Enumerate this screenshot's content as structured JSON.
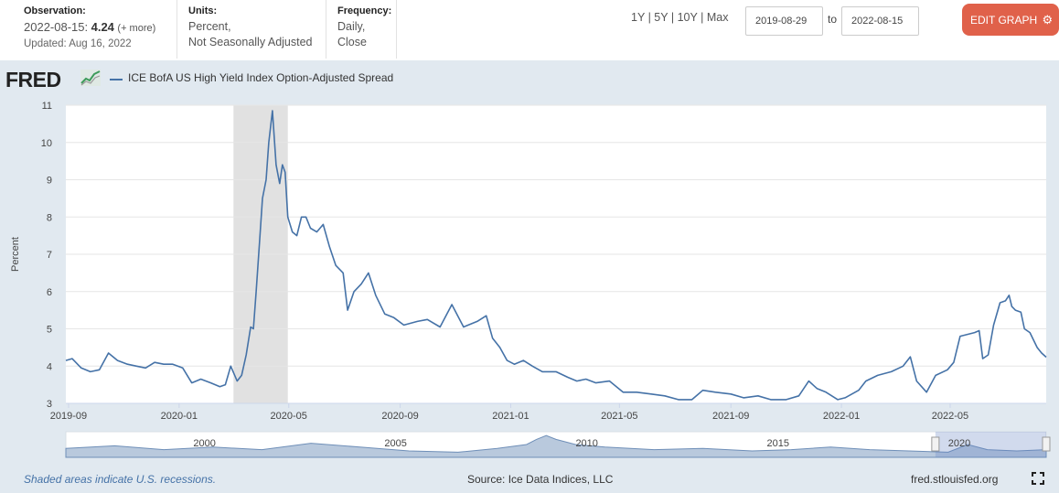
{
  "header": {
    "observation_label": "Observation:",
    "observation_date": "2022-08-15:",
    "observation_value": "4.24",
    "observation_more": "(+ more)",
    "updated": "Updated: Aug 16, 2022",
    "units_label": "Units:",
    "units_line1": "Percent,",
    "units_line2": "Not Seasonally Adjusted",
    "frequency_label": "Frequency:",
    "frequency_line1": "Daily,",
    "frequency_line2": "Close",
    "range_1y": "1Y",
    "range_5y": "5Y",
    "range_10y": "10Y",
    "range_max": "Max",
    "range_sep": "|",
    "start_date": "2019-08-29",
    "to_label": "to",
    "end_date": "2022-08-15",
    "edit_button": "EDIT GRAPH",
    "edit_icon": "gear-icon"
  },
  "brand": {
    "logo_text": "FRED",
    "series_title": "ICE BofA US High Yield Index Option-Adjusted Spread"
  },
  "footer": {
    "recession_note": "Shaded areas indicate U.S. recessions.",
    "source": "Source: Ice Data Indices, LLC",
    "site": "fred.stlouisfed.org"
  },
  "colors": {
    "series": "#4572a7",
    "panel_bg": "#e1e9f0",
    "recession": "#e1e1e1",
    "edit_button": "#e0614a"
  },
  "chart_data": {
    "type": "line",
    "title": "ICE BofA US High Yield Index Option-Adjusted Spread",
    "ylabel": "Percent",
    "xlabel": "",
    "ylim": [
      3,
      11
    ],
    "xlim": [
      "2019-08-29",
      "2022-08-15"
    ],
    "y_ticks": [
      3,
      4,
      5,
      6,
      7,
      8,
      9,
      10,
      11
    ],
    "x_ticks": [
      "2019-09",
      "2020-01",
      "2020-05",
      "2020-09",
      "2021-01",
      "2021-05",
      "2021-09",
      "2022-01",
      "2022-05"
    ],
    "grid": "horizontal",
    "recession": {
      "start": "2020-03-01",
      "end": "2020-04-30"
    },
    "navigator_labels": [
      "2000",
      "2005",
      "2010",
      "2015",
      "2020"
    ],
    "series": [
      {
        "name": "ICE BofA US High Yield Index Option-Adjusted Spread",
        "points": [
          [
            "2019-08-29",
            4.15
          ],
          [
            "2019-09-05",
            4.2
          ],
          [
            "2019-09-15",
            3.95
          ],
          [
            "2019-09-25",
            3.85
          ],
          [
            "2019-10-05",
            3.9
          ],
          [
            "2019-10-15",
            4.35
          ],
          [
            "2019-10-25",
            4.15
          ],
          [
            "2019-11-05",
            4.05
          ],
          [
            "2019-11-15",
            4.0
          ],
          [
            "2019-11-25",
            3.95
          ],
          [
            "2019-12-05",
            4.1
          ],
          [
            "2019-12-15",
            4.05
          ],
          [
            "2019-12-25",
            4.05
          ],
          [
            "2020-01-05",
            3.95
          ],
          [
            "2020-01-15",
            3.55
          ],
          [
            "2020-01-25",
            3.65
          ],
          [
            "2020-02-05",
            3.55
          ],
          [
            "2020-02-15",
            3.45
          ],
          [
            "2020-02-21",
            3.5
          ],
          [
            "2020-02-27",
            4.0
          ],
          [
            "2020-03-05",
            3.6
          ],
          [
            "2020-03-10",
            3.75
          ],
          [
            "2020-03-15",
            4.3
          ],
          [
            "2020-03-20",
            5.05
          ],
          [
            "2020-03-23",
            5.0
          ],
          [
            "2020-03-26",
            6.0
          ],
          [
            "2020-03-30",
            7.4
          ],
          [
            "2020-04-02",
            8.5
          ],
          [
            "2020-04-06",
            9.0
          ],
          [
            "2020-04-09",
            10.0
          ],
          [
            "2020-04-13",
            10.85
          ],
          [
            "2020-04-17",
            9.4
          ],
          [
            "2020-04-21",
            8.9
          ],
          [
            "2020-04-24",
            9.4
          ],
          [
            "2020-04-27",
            9.2
          ],
          [
            "2020-04-30",
            8.0
          ],
          [
            "2020-05-05",
            7.6
          ],
          [
            "2020-05-10",
            7.5
          ],
          [
            "2020-05-15",
            8.0
          ],
          [
            "2020-05-20",
            8.0
          ],
          [
            "2020-05-25",
            7.7
          ],
          [
            "2020-06-01",
            7.6
          ],
          [
            "2020-06-08",
            7.8
          ],
          [
            "2020-06-15",
            7.2
          ],
          [
            "2020-06-22",
            6.7
          ],
          [
            "2020-06-30",
            6.5
          ],
          [
            "2020-07-05",
            5.5
          ],
          [
            "2020-07-12",
            6.0
          ],
          [
            "2020-07-20",
            6.2
          ],
          [
            "2020-07-28",
            6.5
          ],
          [
            "2020-08-05",
            5.9
          ],
          [
            "2020-08-15",
            5.4
          ],
          [
            "2020-08-25",
            5.3
          ],
          [
            "2020-09-05",
            5.1
          ],
          [
            "2020-09-20",
            5.2
          ],
          [
            "2020-10-01",
            5.25
          ],
          [
            "2020-10-15",
            5.05
          ],
          [
            "2020-10-28",
            5.65
          ],
          [
            "2020-11-10",
            5.05
          ],
          [
            "2020-11-25",
            5.2
          ],
          [
            "2020-12-05",
            5.35
          ],
          [
            "2020-12-12",
            4.75
          ],
          [
            "2020-12-20",
            4.5
          ],
          [
            "2020-12-28",
            4.15
          ],
          [
            "2021-01-05",
            4.05
          ],
          [
            "2021-01-15",
            4.15
          ],
          [
            "2021-01-25",
            4.0
          ],
          [
            "2021-02-05",
            3.85
          ],
          [
            "2021-02-20",
            3.85
          ],
          [
            "2021-03-05",
            3.7
          ],
          [
            "2021-03-15",
            3.6
          ],
          [
            "2021-03-25",
            3.65
          ],
          [
            "2021-04-05",
            3.55
          ],
          [
            "2021-04-20",
            3.6
          ],
          [
            "2021-05-05",
            3.3
          ],
          [
            "2021-05-20",
            3.3
          ],
          [
            "2021-06-05",
            3.25
          ],
          [
            "2021-06-20",
            3.2
          ],
          [
            "2021-07-05",
            3.1
          ],
          [
            "2021-07-20",
            3.1
          ],
          [
            "2021-08-01",
            3.35
          ],
          [
            "2021-08-15",
            3.3
          ],
          [
            "2021-09-01",
            3.25
          ],
          [
            "2021-09-15",
            3.15
          ],
          [
            "2021-10-01",
            3.2
          ],
          [
            "2021-10-15",
            3.1
          ],
          [
            "2021-11-01",
            3.1
          ],
          [
            "2021-11-15",
            3.2
          ],
          [
            "2021-11-26",
            3.6
          ],
          [
            "2021-12-05",
            3.4
          ],
          [
            "2021-12-15",
            3.3
          ],
          [
            "2021-12-28",
            3.1
          ],
          [
            "2022-01-05",
            3.15
          ],
          [
            "2022-01-20",
            3.35
          ],
          [
            "2022-01-28",
            3.6
          ],
          [
            "2022-02-10",
            3.75
          ],
          [
            "2022-02-25",
            3.85
          ],
          [
            "2022-03-10",
            4.0
          ],
          [
            "2022-03-18",
            4.25
          ],
          [
            "2022-03-25",
            3.6
          ],
          [
            "2022-04-05",
            3.3
          ],
          [
            "2022-04-15",
            3.75
          ],
          [
            "2022-04-28",
            3.9
          ],
          [
            "2022-05-05",
            4.1
          ],
          [
            "2022-05-12",
            4.8
          ],
          [
            "2022-05-20",
            4.85
          ],
          [
            "2022-05-28",
            4.9
          ],
          [
            "2022-06-02",
            4.95
          ],
          [
            "2022-06-06",
            4.2
          ],
          [
            "2022-06-12",
            4.3
          ],
          [
            "2022-06-18",
            5.1
          ],
          [
            "2022-06-25",
            5.7
          ],
          [
            "2022-07-01",
            5.75
          ],
          [
            "2022-07-05",
            5.9
          ],
          [
            "2022-07-08",
            5.6
          ],
          [
            "2022-07-12",
            5.5
          ],
          [
            "2022-07-18",
            5.45
          ],
          [
            "2022-07-22",
            5.0
          ],
          [
            "2022-07-28",
            4.9
          ],
          [
            "2022-08-05",
            4.5
          ],
          [
            "2022-08-10",
            4.35
          ],
          [
            "2022-08-15",
            4.24
          ]
        ]
      }
    ]
  }
}
